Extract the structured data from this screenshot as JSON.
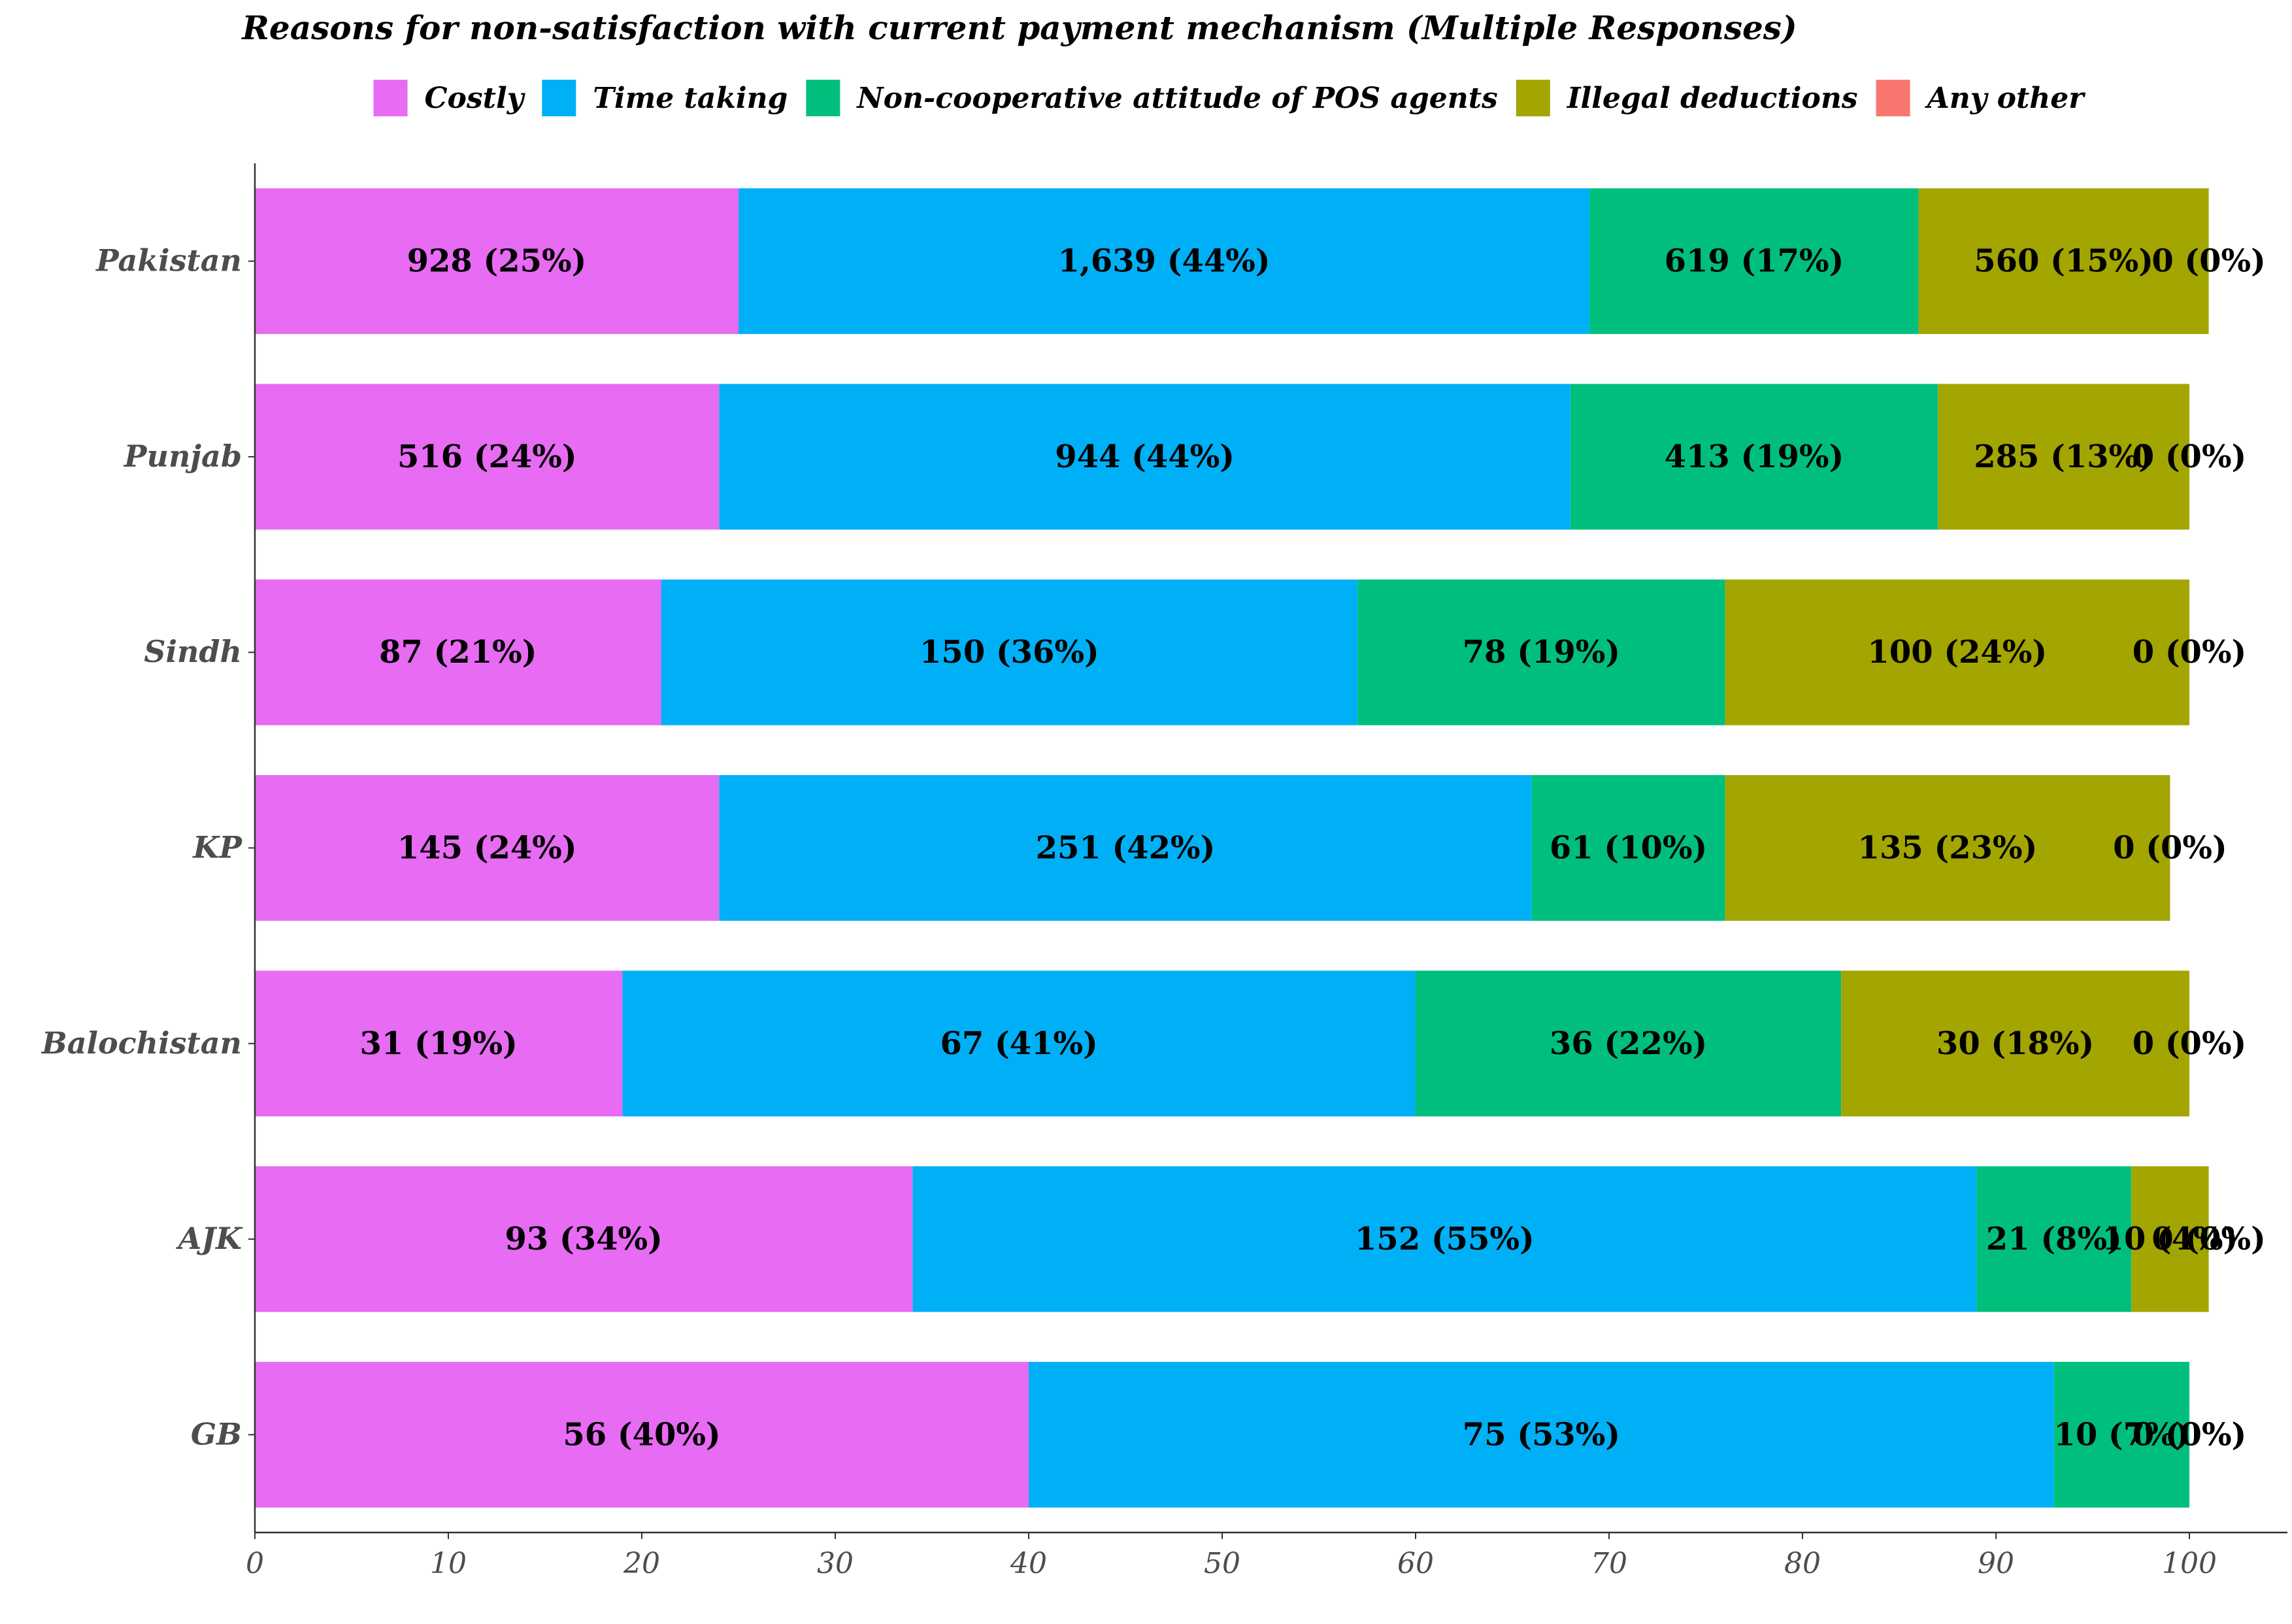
{
  "chart_data": {
    "type": "bar",
    "orientation": "horizontal",
    "stacked": true,
    "title": "Reasons for non-satisfaction with current payment mechanism (Multiple Responses)",
    "xlabel": "",
    "ylabel": "",
    "xlim": [
      0,
      105
    ],
    "xticks": [
      0,
      10,
      20,
      30,
      40,
      50,
      60,
      70,
      80,
      90,
      100
    ],
    "grid": false,
    "legend_position": "top",
    "categories": [
      "Pakistan",
      "Punjab",
      "Sindh",
      "KP",
      "Balochistan",
      "AJK",
      "GB"
    ],
    "series": [
      {
        "name": "Costly",
        "color": "#E76BF3",
        "values": [
          25,
          24,
          21,
          24,
          19,
          34,
          40
        ],
        "labels": [
          "928 (25%)",
          "516 (24%)",
          "87 (21%)",
          "145 (24%)",
          "31 (19%)",
          "93 (34%)",
          "56 (40%)"
        ]
      },
      {
        "name": "Time taking",
        "color": "#00B0F6",
        "values": [
          44,
          44,
          36,
          42,
          41,
          55,
          53
        ],
        "labels": [
          "1,639 (44%)",
          "944 (44%)",
          "150 (36%)",
          "251 (42%)",
          "67 (41%)",
          "152 (55%)",
          "75 (53%)"
        ]
      },
      {
        "name": "Non-cooperative attitude of POS agents",
        "color": "#00BF7D",
        "values": [
          17,
          19,
          19,
          10,
          22,
          8,
          7
        ],
        "labels": [
          "619 (17%)",
          "413 (19%)",
          "78 (19%)",
          "61 (10%)",
          "36 (22%)",
          "21 (8%)",
          "10 (7%)"
        ]
      },
      {
        "name": "Illegal deductions",
        "color": "#A3A500",
        "values": [
          15,
          13,
          24,
          23,
          18,
          4,
          0
        ],
        "labels": [
          "560 (15%)",
          "285 (13%)",
          "100 (24%)",
          "135 (23%)",
          "30 (18%)",
          "10 (4%)",
          "0 (0%)"
        ]
      },
      {
        "name": "Any other",
        "color": "#F8766D",
        "values": [
          0,
          0,
          0,
          0,
          0,
          0,
          0
        ],
        "labels": [
          "0 (0%)",
          "0 (0%)",
          "0 (0%)",
          "0 (0%)",
          "0 (0%)",
          "0 (0%)",
          "0 (0%)"
        ]
      }
    ]
  }
}
